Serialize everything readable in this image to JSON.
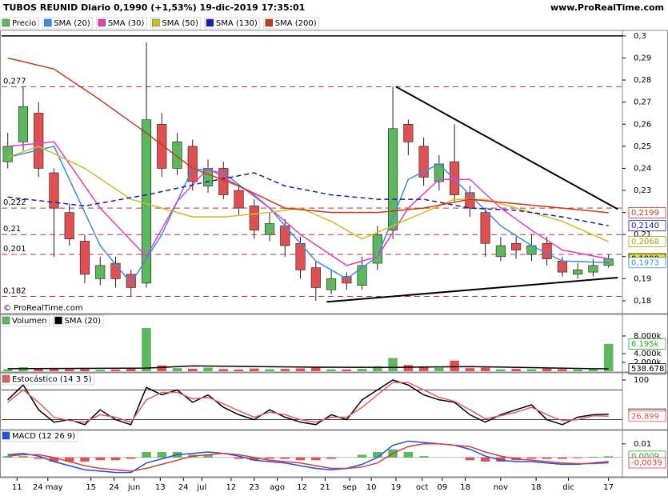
{
  "chart_data": [
    {
      "type": "candlestick",
      "title": "TUBOS REUNID Diario 0,1990 (+1,53%) 19-dic-2019 17:35:01",
      "source": "www.ProRealTime.com",
      "copyright": "© ProRealTime.com",
      "name": "Precio",
      "up_color": "#5cb85c",
      "down_color": "#e05050",
      "xlim": [
        -0.4,
        39.9
      ],
      "xticks": [
        {
          "value": 0.6,
          "label": "11"
        },
        {
          "value": 2.6,
          "label": "24 may"
        },
        {
          "value": 5.4,
          "label": "15"
        },
        {
          "value": 6.9,
          "label": "24"
        },
        {
          "value": 8.2,
          "label": "jun"
        },
        {
          "value": 9.9,
          "label": "13"
        },
        {
          "value": 11.4,
          "label": "24"
        },
        {
          "value": 12.6,
          "label": "jul"
        },
        {
          "value": 14.5,
          "label": "12"
        },
        {
          "value": 16.0,
          "label": "23"
        },
        {
          "value": 17.5,
          "label": "ago"
        },
        {
          "value": 19.1,
          "label": "12"
        },
        {
          "value": 20.6,
          "label": "21"
        },
        {
          "value": 22.2,
          "label": "sep"
        },
        {
          "value": 23.6,
          "label": "10"
        },
        {
          "value": 25.2,
          "label": "19"
        },
        {
          "value": 26.9,
          "label": "oct"
        },
        {
          "value": 28.2,
          "label": "09"
        },
        {
          "value": 29.7,
          "label": "18"
        },
        {
          "value": 32.0,
          "label": "nov"
        },
        {
          "value": 34.3,
          "label": "18"
        },
        {
          "value": 36.4,
          "label": "dic"
        },
        {
          "value": 39.0,
          "label": "17"
        }
      ],
      "ylim": [
        0.1742,
        0.3025
      ],
      "yticks": [
        {
          "value": 0.3,
          "label": "0,3"
        },
        {
          "value": 0.29,
          "label": "0,29"
        },
        {
          "value": 0.28,
          "label": "0,28"
        },
        {
          "value": 0.27,
          "label": "0,27"
        },
        {
          "value": 0.26,
          "label": "0,26"
        },
        {
          "value": 0.25,
          "label": "0,25"
        },
        {
          "value": 0.24,
          "label": "0,24"
        },
        {
          "value": 0.23,
          "label": "0,23"
        },
        {
          "value": 0.22,
          "label": "0,22"
        },
        {
          "value": 0.21,
          "label": "0,21"
        },
        {
          "value": 0.2,
          "label": "0,2"
        },
        {
          "value": 0.19,
          "label": "0,19"
        },
        {
          "value": 0.18,
          "label": "0,18"
        }
      ],
      "open": [
        0.243,
        0.252,
        0.265,
        0.238,
        0.22,
        0.207,
        0.19,
        0.197,
        0.192,
        0.188,
        0.26,
        0.24,
        0.25,
        0.232,
        0.24,
        0.23,
        0.223,
        0.21,
        0.214,
        0.206,
        0.195,
        0.185,
        0.191,
        0.187,
        0.197,
        0.212,
        0.26,
        0.25,
        0.234,
        0.243,
        0.229,
        0.22,
        0.2,
        0.206,
        0.201,
        0.206,
        0.198,
        0.192,
        0.193,
        0.196
      ],
      "high": [
        0.256,
        0.277,
        0.27,
        0.24,
        0.224,
        0.21,
        0.2,
        0.2,
        0.194,
        0.297,
        0.265,
        0.256,
        0.253,
        0.244,
        0.243,
        0.233,
        0.226,
        0.22,
        0.217,
        0.209,
        0.198,
        0.194,
        0.193,
        0.2,
        0.214,
        0.277,
        0.262,
        0.254,
        0.246,
        0.26,
        0.232,
        0.222,
        0.209,
        0.209,
        0.21,
        0.209,
        0.2,
        0.197,
        0.199,
        0.201
      ],
      "low": [
        0.24,
        0.248,
        0.236,
        0.2,
        0.205,
        0.188,
        0.187,
        0.186,
        0.182,
        0.186,
        0.236,
        0.237,
        0.23,
        0.229,
        0.226,
        0.219,
        0.208,
        0.207,
        0.2,
        0.19,
        0.18,
        0.183,
        0.185,
        0.185,
        0.194,
        0.208,
        0.246,
        0.232,
        0.23,
        0.225,
        0.218,
        0.2,
        0.198,
        0.199,
        0.198,
        0.196,
        0.191,
        0.19,
        0.191,
        0.195
      ],
      "close": [
        0.25,
        0.268,
        0.24,
        0.222,
        0.208,
        0.192,
        0.196,
        0.19,
        0.186,
        0.262,
        0.24,
        0.252,
        0.234,
        0.24,
        0.228,
        0.222,
        0.212,
        0.215,
        0.205,
        0.194,
        0.186,
        0.19,
        0.188,
        0.196,
        0.21,
        0.258,
        0.252,
        0.236,
        0.242,
        0.228,
        0.222,
        0.206,
        0.205,
        0.203,
        0.205,
        0.199,
        0.193,
        0.194,
        0.196,
        0.199
      ],
      "series": [
        {
          "name": "SMA (20)",
          "color": "#3c8ce6",
          "x": [
            0,
            3,
            6,
            8,
            10,
            12,
            14,
            17,
            20,
            22,
            24,
            26,
            28,
            30,
            32,
            34,
            36,
            39
          ],
          "values": [
            0.245,
            0.25,
            0.205,
            0.188,
            0.21,
            0.24,
            0.238,
            0.222,
            0.198,
            0.19,
            0.2,
            0.235,
            0.242,
            0.228,
            0.214,
            0.205,
            0.198,
            0.1973
          ]
        },
        {
          "name": "SMA (30)",
          "color": "#e040c0",
          "x": [
            0,
            3,
            6,
            9,
            11,
            13,
            16,
            19,
            22,
            24,
            26,
            28,
            30,
            32,
            34,
            36,
            39
          ],
          "values": [
            0.25,
            0.252,
            0.222,
            0.2,
            0.225,
            0.24,
            0.228,
            0.21,
            0.196,
            0.2,
            0.222,
            0.235,
            0.235,
            0.222,
            0.212,
            0.203,
            0.199
          ]
        },
        {
          "name": "SMA (50)",
          "color": "#c8c020",
          "x": [
            0,
            2,
            5,
            8,
            10,
            12,
            14,
            17,
            19,
            21,
            23,
            25,
            27,
            29,
            31,
            33,
            36,
            39
          ],
          "values": [
            0.245,
            0.25,
            0.24,
            0.226,
            0.222,
            0.218,
            0.218,
            0.22,
            0.222,
            0.216,
            0.208,
            0.214,
            0.22,
            0.226,
            0.226,
            0.222,
            0.216,
            0.2068
          ]
        },
        {
          "name": "SMA (130)",
          "color": "#1a1ab0",
          "dashed": true,
          "x": [
            0,
            5,
            9,
            13,
            16,
            18,
            21,
            24,
            27,
            30,
            33,
            36,
            39
          ],
          "values": [
            0.227,
            0.223,
            0.228,
            0.234,
            0.238,
            0.232,
            0.228,
            0.226,
            0.226,
            0.222,
            0.221,
            0.218,
            0.214
          ]
        },
        {
          "name": "SMA (200)",
          "color": "#c83c14",
          "x": [
            0,
            3,
            6,
            9,
            12,
            15,
            18,
            21,
            24,
            27,
            30,
            33,
            36,
            39
          ],
          "values": [
            0.29,
            0.285,
            0.271,
            0.256,
            0.24,
            0.232,
            0.222,
            0.22,
            0.22,
            0.222,
            0.226,
            0.224,
            0.222,
            0.2199
          ]
        }
      ],
      "levels": [
        {
          "value": 0.277,
          "label": "0,277"
        },
        {
          "value": 0.222,
          "label": "0,222"
        },
        {
          "value": 0.21,
          "label": "0,21"
        },
        {
          "value": 0.201,
          "label": "0,201"
        },
        {
          "value": 0.182,
          "label": "0,182"
        }
      ],
      "trendlines": [
        {
          "x": [
            25.2,
            39.6
          ],
          "y": [
            0.277,
            0.2215
          ]
        },
        {
          "x": [
            20.7,
            39.6
          ],
          "y": [
            0.1795,
            0.1905
          ]
        }
      ],
      "last_values": [
        {
          "value": 0.2199,
          "label": "0,2199",
          "color": "#c83c14",
          "background": "#ffffff"
        },
        {
          "value": 0.214,
          "label": "0,2140",
          "color": "#1a1ab0",
          "background": "#ffffff"
        },
        {
          "value": 0.2068,
          "label": "0,2068",
          "color": "#a8a010",
          "background": "#ffffff"
        },
        {
          "value": 0.199,
          "label": "0,1990",
          "color": "#000000",
          "background": "#f0e020"
        },
        {
          "value": 0.1973,
          "label": "0,1973",
          "color": "#3c8ce6",
          "background": "#ffffff"
        }
      ]
    },
    {
      "type": "volume",
      "title": "Volumen",
      "up_color": "#5cb85c",
      "down_color": "#e05050",
      "ylim": [
        0,
        9800
      ],
      "yticks": [
        {
          "value": 8000,
          "label": "8.000k"
        },
        {
          "value": 4000,
          "label": "4.000k"
        },
        {
          "value": 2000,
          "label": "2.000k"
        }
      ],
      "values": [
        420,
        900,
        520,
        610,
        480,
        530,
        350,
        400,
        620,
        9800,
        1300,
        700,
        560,
        820,
        480,
        390,
        610,
        450,
        520,
        640,
        900,
        420,
        380,
        520,
        1100,
        3000,
        1400,
        900,
        760,
        2400,
        700,
        800,
        420,
        530,
        450,
        600,
        480,
        380,
        420,
        6195
      ],
      "series": [
        {
          "name": "SMA (20)",
          "color": "#000000",
          "x": [
            0,
            9,
            12,
            20,
            25,
            30,
            35,
            38,
            39
          ],
          "values": [
            560,
            700,
            1200,
            900,
            880,
            1050,
            750,
            560,
            538.678
          ]
        }
      ],
      "last_values": [
        {
          "value": 6195,
          "label": "6.195k",
          "color": "#2ca02c",
          "background": "#ffffff"
        },
        {
          "value": 538.678,
          "label": "538.678",
          "color": "#000000",
          "background": "#ffffff"
        }
      ]
    },
    {
      "type": "stochastic",
      "title": "Estocástico (14 3 5)",
      "ylim": [
        0,
        100
      ],
      "yticks": [
        100
      ],
      "bands": [
        80,
        20
      ],
      "series": [
        {
          "color": "#000000",
          "values": [
            60,
            90,
            40,
            15,
            20,
            10,
            40,
            20,
            10,
            85,
            70,
            80,
            55,
            70,
            45,
            30,
            20,
            40,
            25,
            15,
            10,
            30,
            20,
            60,
            80,
            100,
            90,
            70,
            60,
            55,
            30,
            15,
            30,
            40,
            50,
            20,
            10,
            25,
            30,
            31.152
          ]
        },
        {
          "color": "#e06060",
          "values": [
            55,
            80,
            55,
            25,
            18,
            15,
            30,
            25,
            15,
            60,
            75,
            75,
            62,
            65,
            52,
            38,
            25,
            35,
            30,
            20,
            15,
            25,
            25,
            45,
            70,
            95,
            95,
            80,
            65,
            57,
            40,
            22,
            28,
            35,
            45,
            30,
            18,
            20,
            28,
            26.899
          ]
        }
      ],
      "last_values": [
        {
          "value": 31.152,
          "label": "31,152",
          "color": "#000000",
          "background": "#ffffff"
        },
        {
          "value": 26.899,
          "label": "26,899",
          "color": "#e05050",
          "background": "#ffffff"
        }
      ]
    },
    {
      "type": "macd",
      "title": "MACD (12 26 9)",
      "up_color": "#5cb85c",
      "down_color": "#e05050",
      "ylim": [
        -0.013,
        0.014
      ],
      "yticks": [
        {
          "value": 0.01,
          "label": "0.01"
        }
      ],
      "histogram": [
        0.001,
        0.001,
        -0.001,
        -0.003,
        -0.003,
        -0.003,
        -0.002,
        -0.002,
        -0.001,
        0.004,
        0.004,
        0.004,
        0.002,
        0.002,
        0,
        -0.001,
        -0.002,
        -0.001,
        -0.001,
        -0.002,
        -0.002,
        -0.001,
        0,
        0.002,
        0.004,
        0.006,
        0.004,
        0.001,
        0,
        0,
        -0.002,
        -0.003,
        -0.003,
        -0.002,
        -0.001,
        -0.001,
        -0.001,
        -0.0005,
        0.0005,
        0.0009
      ],
      "series": [
        {
          "color": "#2050e0",
          "values": [
            0.002,
            0.003,
            0.001,
            -0.003,
            -0.006,
            -0.009,
            -0.01,
            -0.011,
            -0.011,
            -0.004,
            -0.001,
            0.002,
            0.003,
            0.004,
            0.003,
            0.001,
            -0.002,
            -0.003,
            -0.004,
            -0.006,
            -0.008,
            -0.009,
            -0.008,
            -0.005,
            0,
            0.009,
            0.012,
            0.011,
            0.01,
            0.009,
            0.006,
            0.001,
            -0.002,
            -0.003,
            -0.003,
            -0.004,
            -0.005,
            -0.005,
            -0.004,
            -0.003
          ]
        },
        {
          "color": "#d04040",
          "values": [
            0.001,
            0.002,
            0.002,
            0,
            -0.003,
            -0.006,
            -0.008,
            -0.009,
            -0.01,
            -0.008,
            -0.005,
            -0.002,
            0.001,
            0.002,
            0.003,
            0.002,
            0,
            -0.002,
            -0.003,
            -0.004,
            -0.006,
            -0.008,
            -0.008,
            -0.007,
            -0.004,
            0.003,
            0.008,
            0.01,
            0.01,
            0.009,
            0.008,
            0.004,
            0.001,
            -0.001,
            -0.002,
            -0.003,
            -0.004,
            -0.0045,
            -0.0045,
            -0.0039
          ]
        }
      ],
      "last_values": [
        {
          "value": 0.0009,
          "label": "0,0009",
          "color": "#2ca02c",
          "background": "#ffffff"
        },
        {
          "value": -0.0039,
          "label": "-0,0039",
          "color": "#d04040",
          "background": "#ffffff"
        }
      ]
    }
  ]
}
